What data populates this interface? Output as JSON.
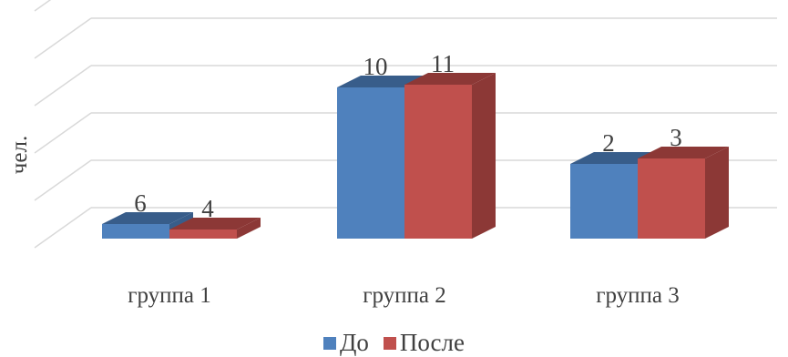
{
  "chart_data": {
    "type": "bar",
    "title": "",
    "xlabel": "",
    "ylabel": "чел.",
    "categories": [
      "группа 1",
      "группа 2",
      "группа 3"
    ],
    "series": [
      {
        "name": "До",
        "color": "#4F81BD",
        "top_color": "#385D8A",
        "values": [
          6,
          10,
          2
        ]
      },
      {
        "name": "После",
        "color": "#C0504D",
        "top_color": "#8C3836",
        "values": [
          4,
          11,
          3
        ]
      }
    ],
    "grid": true,
    "legend": "bottom",
    "three_d": true
  }
}
